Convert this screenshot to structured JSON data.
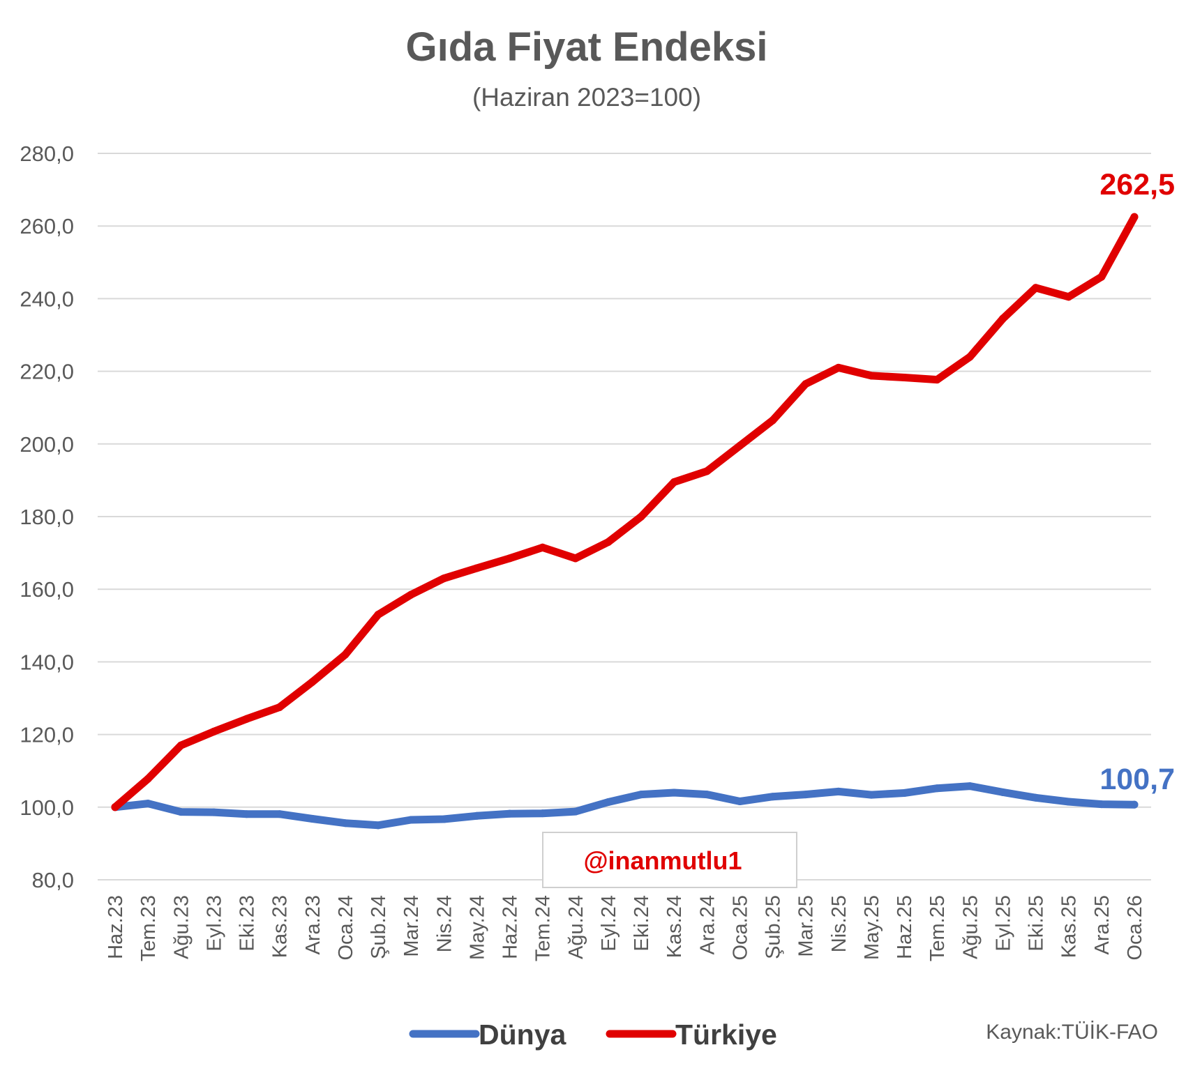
{
  "chart_data": {
    "type": "line",
    "title": "Gıda Fiyat Endeksi",
    "subtitle": "(Haziran 2023=100)",
    "ylim": [
      80,
      280
    ],
    "yticks": [
      "80,0",
      "100,0",
      "120,0",
      "140,0",
      "160,0",
      "180,0",
      "200,0",
      "220,0",
      "240,0",
      "260,0",
      "280,0"
    ],
    "grid": true,
    "legend_position": "bottom",
    "categories": [
      "Haz.23",
      "Tem.23",
      "Ağu.23",
      "Eyl.23",
      "Eki.23",
      "Kas.23",
      "Ara.23",
      "Oca.24",
      "Şub.24",
      "Mar.24",
      "Nis.24",
      "May.24",
      "Haz.24",
      "Tem.24",
      "Ağu.24",
      "Eyl.24",
      "Eki.24",
      "Kas.24",
      "Ara.24",
      "Oca.25",
      "Şub.25",
      "Mar.25",
      "Nis.25",
      "May.25",
      "Haz.25",
      "Tem.25",
      "Ağu.25",
      "Eyl.25",
      "Eki.25",
      "Kas.25",
      "Ara.25",
      "Oca.26"
    ],
    "series": [
      {
        "name": "Dünya",
        "color": "#4472c4",
        "end_label": "100,7",
        "values": [
          100.0,
          101.0,
          98.7,
          98.6,
          98.1,
          98.1,
          96.8,
          95.6,
          95.0,
          96.5,
          96.7,
          97.6,
          98.2,
          98.3,
          98.8,
          101.4,
          103.5,
          104.0,
          103.5,
          101.6,
          102.9,
          103.5,
          104.3,
          103.4,
          103.9,
          105.2,
          105.8,
          104.1,
          102.6,
          101.5,
          100.8,
          100.7
        ]
      },
      {
        "name": "Türkiye",
        "color": "#e00000",
        "end_label": "262,5",
        "values": [
          100.0,
          107.8,
          117.0,
          120.8,
          124.3,
          127.5,
          134.5,
          142.0,
          153.0,
          158.5,
          163.0,
          165.8,
          168.5,
          171.5,
          168.5,
          173.0,
          180.0,
          189.5,
          192.5,
          199.5,
          206.5,
          216.5,
          221.0,
          218.8,
          218.3,
          217.7,
          224.0,
          234.5,
          243.0,
          240.5,
          246.0,
          262.5
        ]
      }
    ],
    "annotations": {
      "watermark": "@inanmutlu1",
      "source": "Kaynak:TÜİK-FAO"
    }
  }
}
